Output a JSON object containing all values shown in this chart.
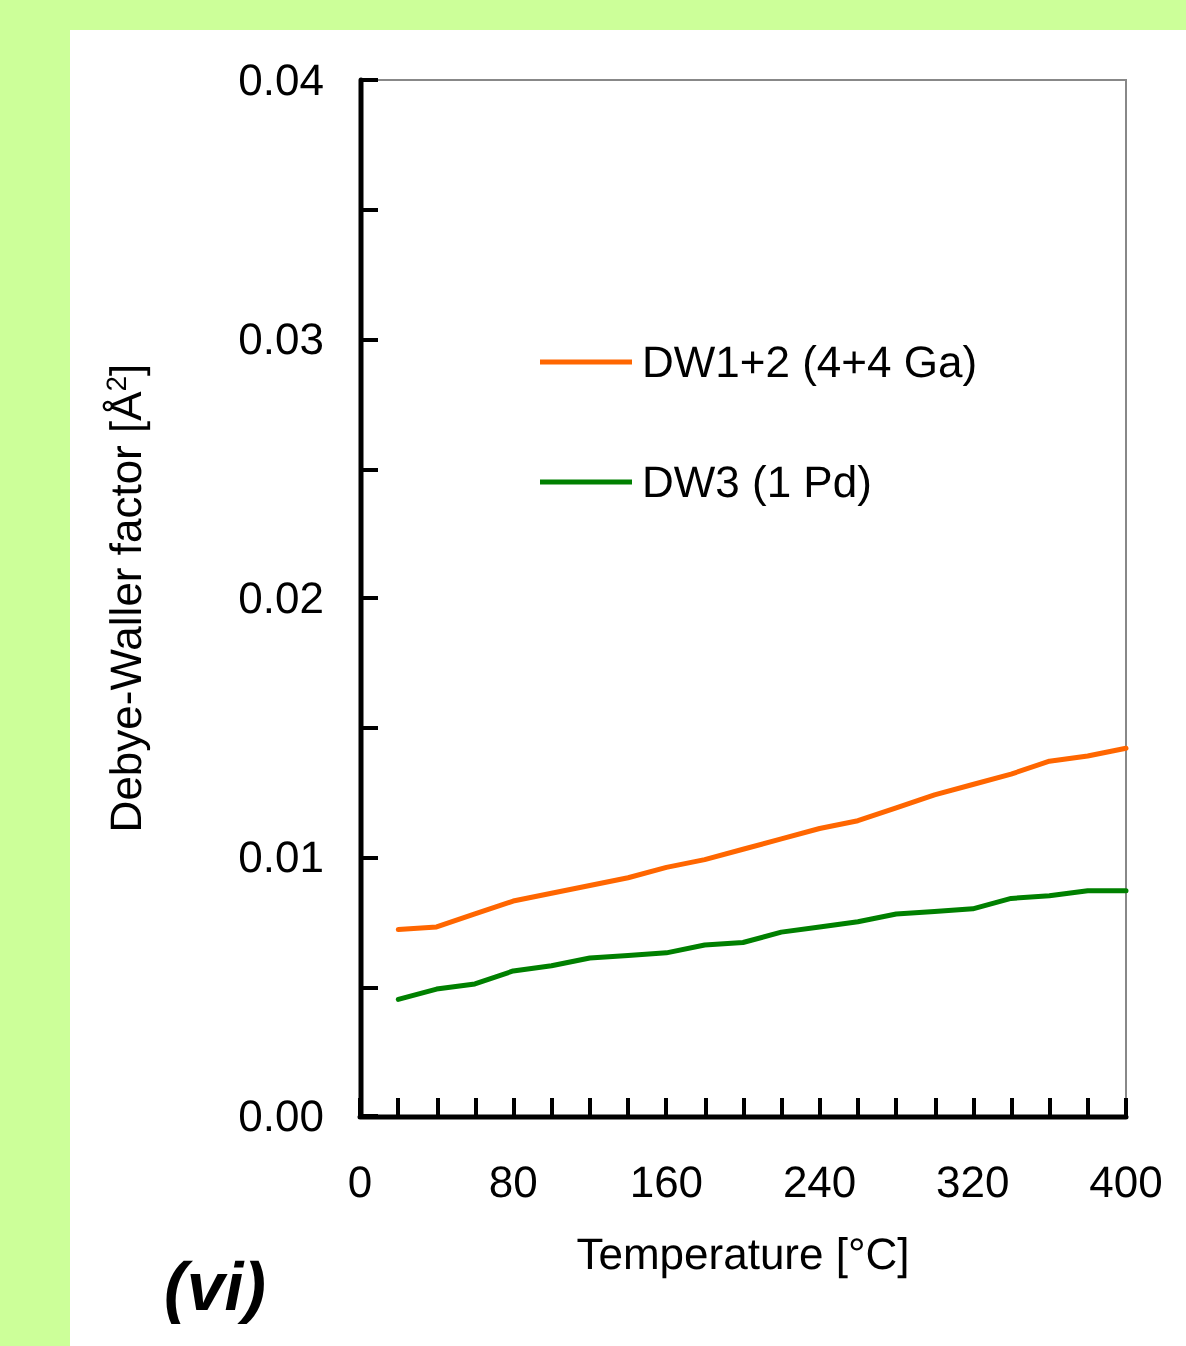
{
  "chart_data": {
    "type": "line",
    "xlabel": "Temperature [°C]",
    "ylabel": "Debye-Waller factor [Å$^{2}$]",
    "annotations": [
      "(vi)"
    ],
    "x": [
      20,
      40,
      60,
      80,
      100,
      120,
      140,
      160,
      180,
      200,
      220,
      240,
      260,
      280,
      300,
      320,
      340,
      360,
      380,
      400
    ],
    "series": [
      {
        "name": "DW1+2 (4+4 Ga)",
        "color": "#ff6600",
        "values": [
          0.0072,
          0.0073,
          0.0078,
          0.0083,
          0.0086,
          0.0089,
          0.0092,
          0.0096,
          0.0099,
          0.0103,
          0.0107,
          0.0111,
          0.0114,
          0.0119,
          0.0124,
          0.0128,
          0.0132,
          0.0137,
          0.0139,
          0.0142
        ]
      },
      {
        "name": "DW3 (1 Pd)",
        "color": "#008000",
        "values": [
          0.0045,
          0.0049,
          0.0051,
          0.0056,
          0.0058,
          0.0061,
          0.0062,
          0.0063,
          0.0066,
          0.0067,
          0.0071,
          0.0073,
          0.0075,
          0.0078,
          0.0079,
          0.008,
          0.0084,
          0.0085,
          0.0087,
          0.0087
        ]
      }
    ],
    "xlim": [
      0,
      400
    ],
    "xticks": [
      0,
      {
        "value": 20,
        "label": null
      },
      {
        "value": 40,
        "label": null
      },
      {
        "value": 60,
        "label": null
      },
      80,
      {
        "value": 100,
        "label": null
      },
      {
        "value": 120,
        "label": null
      },
      {
        "value": 140,
        "label": null
      },
      160,
      {
        "value": 180,
        "label": null
      },
      {
        "value": 200,
        "label": null
      },
      {
        "value": 220,
        "label": null
      },
      240,
      {
        "value": 260,
        "label": null
      },
      {
        "value": 280,
        "label": null
      },
      {
        "value": 300,
        "label": null
      },
      320,
      {
        "value": 340,
        "label": null
      },
      {
        "value": 360,
        "label": null
      },
      {
        "value": 380,
        "label": null
      },
      400
    ],
    "ylim": [
      0,
      0.04
    ],
    "yticks": [
      {
        "value": 0,
        "label": "0.00"
      },
      {
        "value": 0.005,
        "label": null
      },
      {
        "value": 0.01,
        "label": "0.01"
      },
      {
        "value": 0.015,
        "label": null
      },
      {
        "value": 0.02,
        "label": "0.02"
      },
      {
        "value": 0.025,
        "label": null
      },
      {
        "value": 0.03,
        "label": "0.03"
      },
      {
        "value": 0.035,
        "label": null
      },
      {
        "value": 0.04,
        "label": "0.04"
      }
    ],
    "grid": false,
    "legend": "top right",
    "marker": "none",
    "line_style": "solid"
  }
}
